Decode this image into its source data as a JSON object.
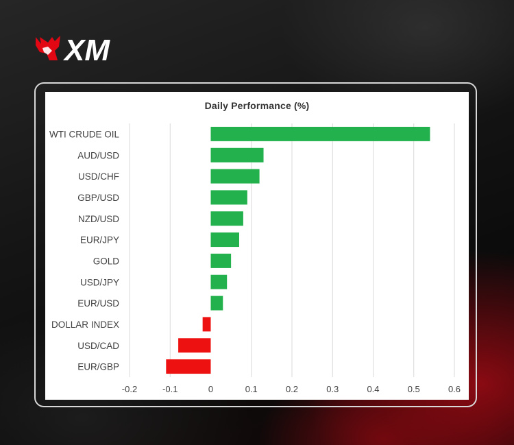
{
  "brand": {
    "logo_text": "XM",
    "logo_color": "#e30613"
  },
  "colors": {
    "positive": "#22b14c",
    "negative": "#ee1111",
    "grid": "#d9d9d9",
    "label": "#404040"
  },
  "chart_data": {
    "type": "bar",
    "orientation": "horizontal",
    "title": "Daily Performance (%)",
    "categories": [
      "WTI CRUDE OIL",
      "AUD/USD",
      "USD/CHF",
      "GBP/USD",
      "NZD/USD",
      "EUR/JPY",
      "GOLD",
      "USD/JPY",
      "EUR/USD",
      "DOLLAR INDEX",
      "USD/CAD",
      "EUR/GBP"
    ],
    "values": [
      0.54,
      0.13,
      0.12,
      0.09,
      0.08,
      0.07,
      0.05,
      0.04,
      0.03,
      -0.02,
      -0.08,
      -0.11
    ],
    "xlim": [
      -0.2,
      0.6
    ],
    "xticks": [
      -0.2,
      -0.1,
      0,
      0.1,
      0.2,
      0.3,
      0.4,
      0.5,
      0.6
    ],
    "xtick_labels": [
      "-0.2",
      "-0.1",
      "0",
      "0.1",
      "0.2",
      "0.3",
      "0.4",
      "0.5",
      "0.6"
    ],
    "grid": "vertical",
    "legend": "none"
  }
}
